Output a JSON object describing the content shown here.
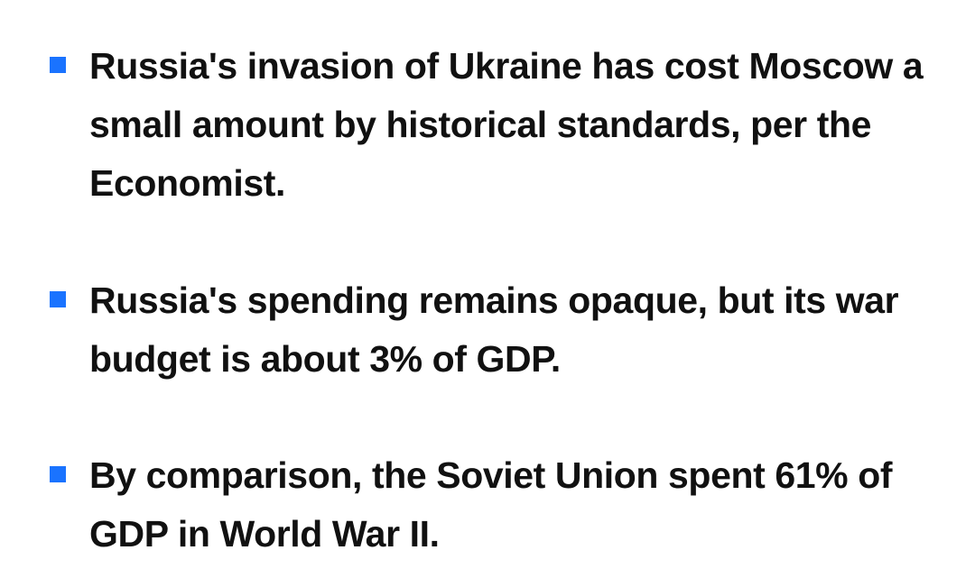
{
  "accent_color": "#1a73ff",
  "bullets": [
    {
      "icon": "square-bullet-icon",
      "text": "Russia's invasion of Ukraine has cost Moscow a small amount by historical standards, per the Economist."
    },
    {
      "icon": "square-bullet-icon",
      "text": "Russia's spending remains opaque, but its war budget is about 3% of GDP."
    },
    {
      "icon": "square-bullet-icon",
      "text": "By comparison, the Soviet Union spent 61% of GDP in World War II."
    }
  ]
}
